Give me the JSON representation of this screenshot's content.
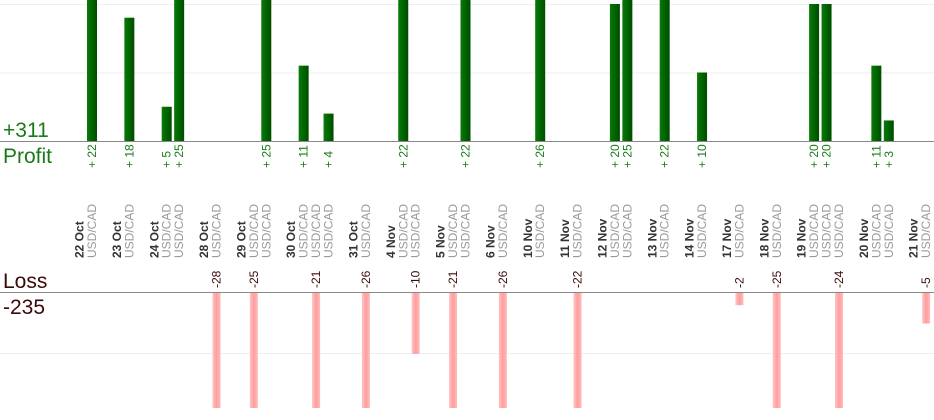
{
  "chart_data": {
    "type": "bar",
    "profit_label": "Profit",
    "loss_label": "Loss",
    "profit_total": "+311",
    "loss_total": "-235",
    "profit_color": "#006400",
    "loss_color": "#ffaaaa",
    "grid": true,
    "profit_gridlines": [
      10,
      20
    ],
    "loss_gridlines": [
      10
    ],
    "groups": [
      {
        "date": "22 Oct",
        "trades": [
          {
            "pair": "USD/CAD",
            "value": 22
          }
        ]
      },
      {
        "date": "23 Oct",
        "trades": [
          {
            "pair": "USD/CAD",
            "value": 18
          }
        ]
      },
      {
        "date": "24 Oct",
        "trades": [
          {
            "pair": "USD/CAD",
            "value": 5
          },
          {
            "pair": "USD/CAD",
            "value": 25
          }
        ]
      },
      {
        "date": "28 Oct",
        "trades": [
          {
            "pair": "USD/CAD",
            "value": -28
          }
        ]
      },
      {
        "date": "29 Oct",
        "trades": [
          {
            "pair": "USD/CAD",
            "value": -25
          },
          {
            "pair": "USD/CAD",
            "value": 25
          }
        ]
      },
      {
        "date": "30 Oct",
        "trades": [
          {
            "pair": "USD/CAD",
            "value": 11
          },
          {
            "pair": "USD/CAD",
            "value": -21
          },
          {
            "pair": "USD/CAD",
            "value": 4
          }
        ]
      },
      {
        "date": "31 Oct",
        "trades": [
          {
            "pair": "USD/CAD",
            "value": -26
          }
        ]
      },
      {
        "date": "4 Nov",
        "trades": [
          {
            "pair": "USD/CAD",
            "value": 22
          },
          {
            "pair": "USD/CAD",
            "value": -10
          }
        ]
      },
      {
        "date": "5 Nov",
        "trades": [
          {
            "pair": "USD/CAD",
            "value": -21
          },
          {
            "pair": "USD/CAD",
            "value": 22
          }
        ]
      },
      {
        "date": "6 Nov",
        "trades": [
          {
            "pair": "USD/CAD",
            "value": -26
          }
        ]
      },
      {
        "date": "10 Nov",
        "trades": [
          {
            "pair": "USD/CAD",
            "value": 26
          }
        ]
      },
      {
        "date": "11 Nov",
        "trades": [
          {
            "pair": "USD/CAD",
            "value": -22
          }
        ]
      },
      {
        "date": "12 Nov",
        "trades": [
          {
            "pair": "USD/CAD",
            "value": 20
          },
          {
            "pair": "USD/CAD",
            "value": 25
          }
        ]
      },
      {
        "date": "13 Nov",
        "trades": [
          {
            "pair": "USD/CAD",
            "value": 22
          }
        ]
      },
      {
        "date": "14 Nov",
        "trades": [
          {
            "pair": "USD/CAD",
            "value": 10
          }
        ]
      },
      {
        "date": "17 Nov",
        "trades": [
          {
            "pair": "USD/CAD",
            "value": -2
          }
        ]
      },
      {
        "date": "18 Nov",
        "trades": [
          {
            "pair": "USD/CAD",
            "value": -25
          }
        ]
      },
      {
        "date": "19 Nov",
        "trades": [
          {
            "pair": "USD/CAD",
            "value": 20
          },
          {
            "pair": "USD/CAD",
            "value": 20
          },
          {
            "pair": "USD/CAD",
            "value": -24
          }
        ]
      },
      {
        "date": "20 Nov",
        "trades": [
          {
            "pair": "USD/CAD",
            "value": 11
          },
          {
            "pair": "USD/CAD",
            "value": 3
          }
        ]
      },
      {
        "date": "21 Nov",
        "trades": [
          {
            "pair": "USD/CAD",
            "value": -5
          }
        ]
      }
    ]
  }
}
